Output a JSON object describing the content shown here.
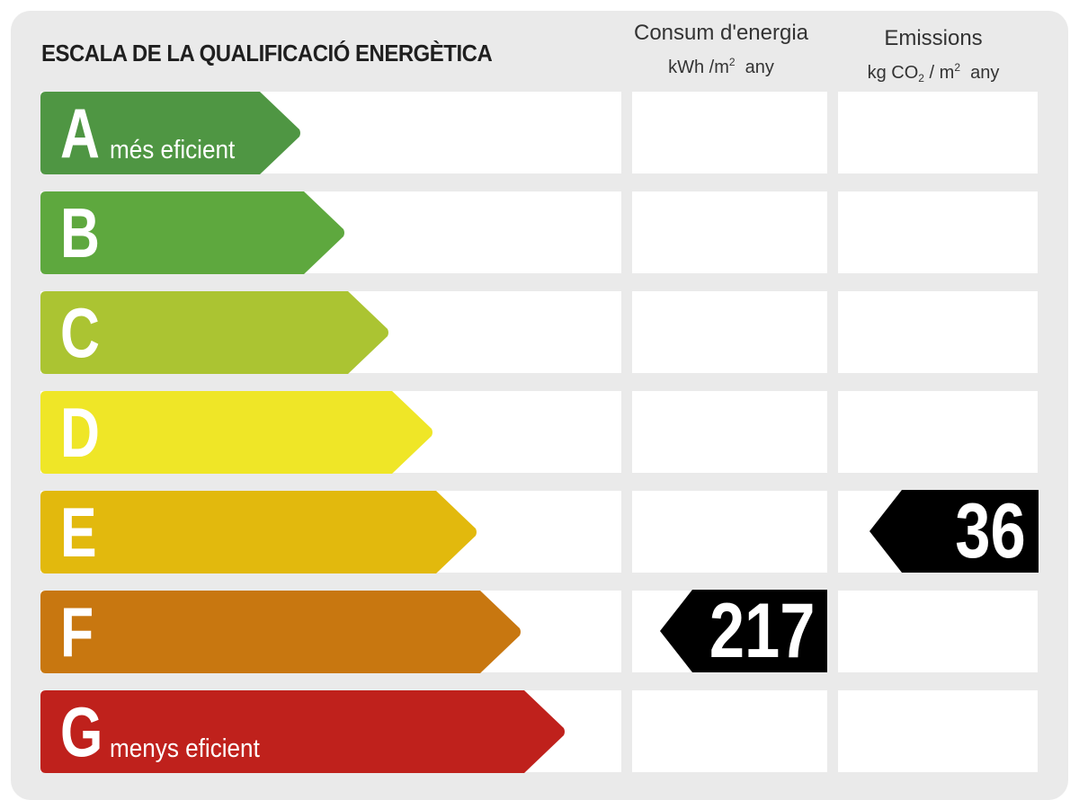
{
  "title": "ESCALA DE LA QUALIFICACIÓ ENERGÈTICA",
  "columns": {
    "energy": {
      "label": "Consum d'energia",
      "unit_prefix": "kWh /m",
      "unit_exp": "2",
      "unit_suffix": "any"
    },
    "emissions": {
      "label": "Emissions",
      "unit_prefix": "kg CO",
      "unit_sub": "2",
      "unit_mid": " / m",
      "unit_exp": "2",
      "unit_suffix": "any"
    }
  },
  "ratings": [
    {
      "letter": "A",
      "label": "més eficient",
      "color": "#4f9643"
    },
    {
      "letter": "B",
      "label": "",
      "color": "#5ea83e"
    },
    {
      "letter": "C",
      "label": "",
      "color": "#abc432"
    },
    {
      "letter": "D",
      "label": "",
      "color": "#efe627"
    },
    {
      "letter": "E",
      "label": "",
      "color": "#e2b90d"
    },
    {
      "letter": "F",
      "label": "",
      "color": "#c87710"
    },
    {
      "letter": "G",
      "label": "menys eficient",
      "color": "#bf211c"
    }
  ],
  "energy_value": {
    "rating": "F",
    "value": "217"
  },
  "emissions_value": {
    "rating": "E",
    "value": "36"
  }
}
